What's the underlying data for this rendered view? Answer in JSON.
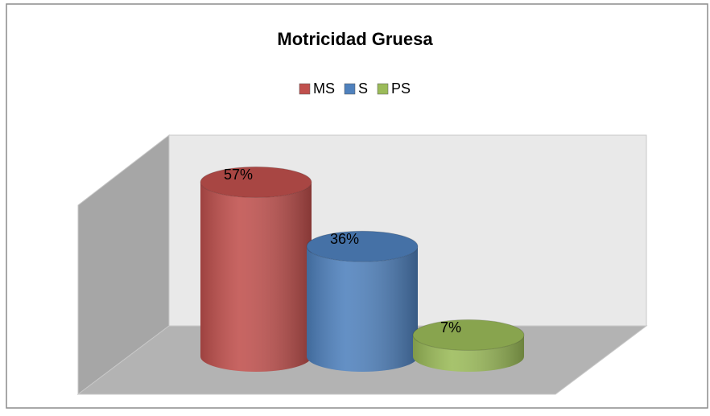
{
  "chart_data": {
    "type": "cylinder3d",
    "title": "Motricidad Gruesa",
    "categories": [
      null
    ],
    "series": [
      {
        "name": "MS",
        "color": "#c0504d",
        "values": [
          57
        ],
        "value_labels": [
          "57%"
        ]
      },
      {
        "name": "S",
        "color": "#4f81bd",
        "values": [
          36
        ],
        "value_labels": [
          "36%"
        ]
      },
      {
        "name": "PS",
        "color": "#9bbb59",
        "values": [
          7
        ],
        "value_labels": [
          "7%"
        ]
      }
    ],
    "legend": "top"
  }
}
